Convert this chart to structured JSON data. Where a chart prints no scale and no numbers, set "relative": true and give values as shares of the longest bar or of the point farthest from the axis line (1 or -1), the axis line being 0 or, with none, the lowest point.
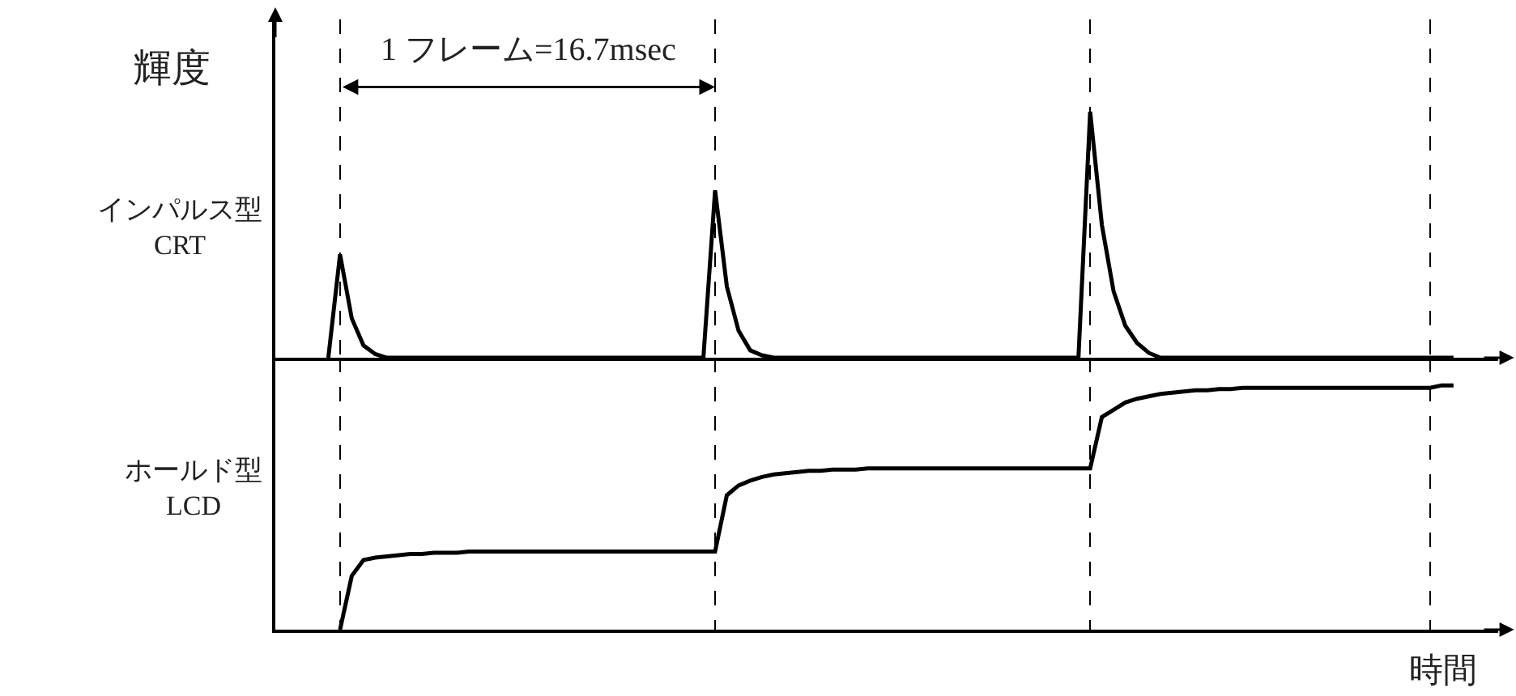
{
  "chart_data": [
    {
      "type": "line",
      "relative": true,
      "ylabel": "輝度",
      "grid": "x",
      "legend": false,
      "marker": "none",
      "line_style": "solid",
      "categories": [
        null,
        null,
        null,
        null,
        null,
        null,
        null,
        null,
        null,
        null,
        null,
        null,
        null,
        null,
        null,
        null,
        null,
        null,
        null,
        null,
        null,
        null,
        null,
        null,
        null,
        null,
        null,
        null,
        null,
        null,
        null,
        null,
        null,
        null,
        null,
        null,
        null,
        null,
        null,
        null,
        null,
        null,
        null,
        null,
        null,
        null,
        null,
        null,
        null,
        null,
        null,
        null,
        null,
        null,
        null,
        null,
        null,
        null,
        null,
        null,
        null,
        null,
        null,
        null,
        null,
        null,
        null,
        null,
        null,
        null,
        null,
        null,
        null,
        null,
        null,
        null,
        null,
        null,
        null,
        null,
        null,
        null,
        null,
        null,
        null,
        null,
        null,
        null,
        null,
        null,
        null,
        null,
        null,
        null,
        null,
        null,
        null
      ],
      "series": [
        {
          "name": "インパルス型\nCRT",
          "color": "#000000",
          "values": [
            0,
            0.42,
            0.16,
            0.05,
            0.015,
            0,
            0,
            0,
            0,
            0,
            0,
            0,
            0,
            0,
            0,
            0,
            0,
            0,
            0,
            0,
            0,
            0,
            0,
            0,
            0,
            0,
            0,
            0,
            0,
            0,
            0,
            0,
            0,
            0.68,
            0.29,
            0.11,
            0.03,
            0.01,
            0,
            0,
            0,
            0,
            0,
            0,
            0,
            0,
            0,
            0,
            0,
            0,
            0,
            0,
            0,
            0,
            0,
            0,
            0,
            0,
            0,
            0,
            0,
            0,
            0,
            0,
            0,
            1,
            0.54,
            0.27,
            0.13,
            0.06,
            0.02,
            0,
            0,
            0,
            0,
            0,
            0,
            0,
            0,
            0,
            0,
            0,
            0,
            0,
            0,
            0,
            0,
            0,
            0,
            0,
            0,
            0,
            0,
            0,
            0,
            0,
            0
          ]
        }
      ],
      "annotations": [
        "1 フレーム=16.7msec"
      ]
    },
    {
      "type": "line",
      "relative": true,
      "xlabel": "時間",
      "grid": "x",
      "legend": false,
      "marker": "none",
      "line_style": "solid",
      "categories": [
        null,
        null,
        null,
        null,
        null,
        null,
        null,
        null,
        null,
        null,
        null,
        null,
        null,
        null,
        null,
        null,
        null,
        null,
        null,
        null,
        null,
        null,
        null,
        null,
        null,
        null,
        null,
        null,
        null,
        null,
        null,
        null,
        null,
        null,
        null,
        null,
        null,
        null,
        null,
        null,
        null,
        null,
        null,
        null,
        null,
        null,
        null,
        null,
        null,
        null,
        null,
        null,
        null,
        null,
        null,
        null,
        null,
        null,
        null,
        null,
        null,
        null,
        null,
        null,
        null,
        null,
        null,
        null,
        null,
        null,
        null,
        null,
        null,
        null,
        null,
        null,
        null,
        null,
        null,
        null,
        null,
        null,
        null,
        null,
        null,
        null,
        null,
        null,
        null,
        null,
        null,
        null,
        null,
        null,
        null,
        null,
        null
      ],
      "series": [
        {
          "name": "ホールド型\nLCD",
          "color": "#000000",
          "values": [
            null,
            0,
            0.22,
            0.285,
            0.295,
            0.3,
            0.305,
            0.31,
            0.31,
            0.315,
            0.315,
            0.315,
            0.32,
            0.32,
            0.32,
            0.32,
            0.32,
            0.32,
            0.32,
            0.32,
            0.32,
            0.32,
            0.32,
            0.32,
            0.32,
            0.32,
            0.32,
            0.32,
            0.32,
            0.32,
            0.32,
            0.32,
            0.32,
            0.32,
            0.55,
            0.59,
            0.61,
            0.625,
            0.635,
            0.64,
            0.645,
            0.65,
            0.65,
            0.655,
            0.655,
            0.655,
            0.66,
            0.66,
            0.66,
            0.66,
            0.66,
            0.66,
            0.66,
            0.66,
            0.66,
            0.66,
            0.66,
            0.66,
            0.66,
            0.66,
            0.66,
            0.66,
            0.66,
            0.66,
            0.66,
            0.66,
            0.87,
            0.9,
            0.93,
            0.945,
            0.955,
            0.965,
            0.97,
            0.975,
            0.98,
            0.98,
            0.985,
            0.985,
            0.99,
            0.99,
            0.99,
            0.99,
            0.99,
            0.99,
            0.99,
            0.99,
            0.99,
            0.99,
            0.99,
            0.99,
            0.99,
            0.99,
            0.99,
            0.99,
            0.99,
            1,
            1
          ]
        }
      ]
    }
  ]
}
